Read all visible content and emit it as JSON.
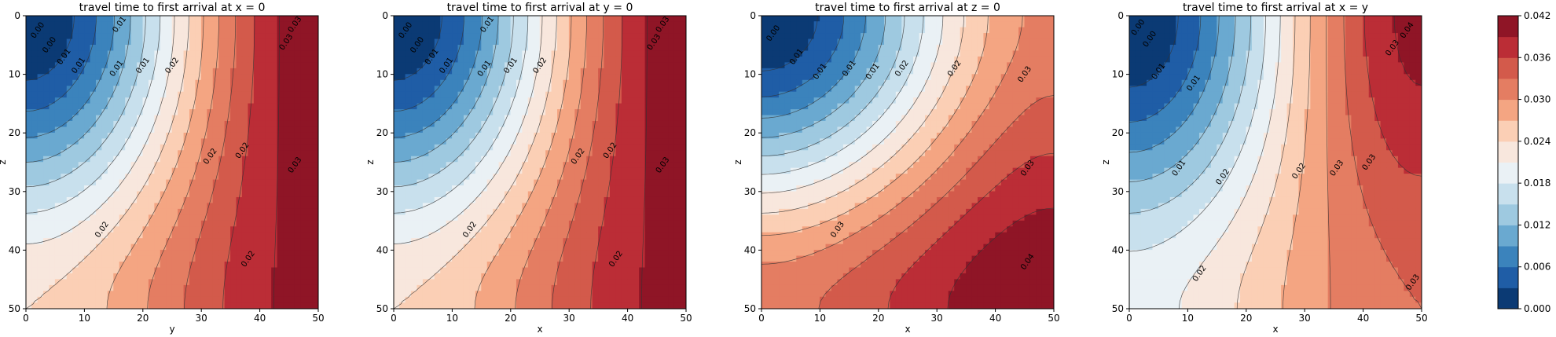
{
  "chart_data": {
    "type": "contour",
    "value_levels": [
      0.0,
      0.003,
      0.006,
      0.009,
      0.012,
      0.015,
      0.018,
      0.021,
      0.024,
      0.027,
      0.03,
      0.033,
      0.036,
      0.039,
      0.042
    ],
    "level_colors": [
      "#0b3a74",
      "#1f5da6",
      "#3b83bc",
      "#6aa9d0",
      "#9ec9e0",
      "#c8e0ed",
      "#eaf1f5",
      "#f8e7dd",
      "#fbcfb5",
      "#f4a582",
      "#e47d62",
      "#d35a4b",
      "#bb2d36",
      "#8f1526"
    ],
    "colorbar": {
      "ticks": [
        0.0,
        0.006,
        0.012,
        0.018,
        0.024,
        0.03,
        0.036,
        0.042
      ],
      "tick_labels": [
        "0.000",
        "0.006",
        "0.012",
        "0.018",
        "0.024",
        "0.030",
        "0.036",
        "0.042"
      ],
      "range": [
        0.0,
        0.042
      ]
    },
    "panels": [
      {
        "title": "travel time to first arrival at x = 0",
        "xlabel": "y",
        "ylabel": "z",
        "xlim": [
          0,
          50
        ],
        "ylim": [
          50,
          0
        ],
        "x_ticks": [
          0,
          10,
          20,
          30,
          40,
          50
        ],
        "y_ticks": [
          0,
          10,
          20,
          30,
          40,
          50
        ],
        "sample_values": {
          "origin": 0.0,
          "top_right": 0.041,
          "bottom_left": 0.024,
          "bottom_right": 0.04
        },
        "contour_labels": [
          {
            "text": "0.00",
            "x": 2.0,
            "y": 2.5
          },
          {
            "text": "0.00",
            "x": 4.0,
            "y": 5.0
          },
          {
            "text": "0.01",
            "x": 6.5,
            "y": 7.0
          },
          {
            "text": "0.01",
            "x": 9.0,
            "y": 8.5
          },
          {
            "text": "0.01",
            "x": 15.5,
            "y": 9.0
          },
          {
            "text": "0.01",
            "x": 20.0,
            "y": 8.5
          },
          {
            "text": "0.02",
            "x": 25.0,
            "y": 8.5
          },
          {
            "text": "0.01",
            "x": 16.0,
            "y": 1.5
          },
          {
            "text": "0.03",
            "x": 44.5,
            "y": 4.5
          },
          {
            "text": "0.03",
            "x": 46.0,
            "y": 1.5
          },
          {
            "text": "0.02",
            "x": 31.5,
            "y": 24.0
          },
          {
            "text": "0.02",
            "x": 37.0,
            "y": 23.0
          },
          {
            "text": "0.03",
            "x": 46.0,
            "y": 25.5
          },
          {
            "text": "0.02",
            "x": 13.0,
            "y": 36.5
          },
          {
            "text": "0.02",
            "x": 38.0,
            "y": 41.5
          }
        ]
      },
      {
        "title": "travel time to first arrival at y = 0",
        "xlabel": "x",
        "ylabel": "z",
        "xlim": [
          0,
          50
        ],
        "ylim": [
          50,
          0
        ],
        "x_ticks": [
          0,
          10,
          20,
          30,
          40,
          50
        ],
        "y_ticks": [
          0,
          10,
          20,
          30,
          40,
          50
        ],
        "sample_values": {
          "origin": 0.0,
          "top_right": 0.041,
          "bottom_left": 0.024,
          "bottom_right": 0.04
        },
        "contour_labels": [
          {
            "text": "0.00",
            "x": 2.0,
            "y": 2.5
          },
          {
            "text": "0.00",
            "x": 4.0,
            "y": 5.0
          },
          {
            "text": "0.01",
            "x": 6.5,
            "y": 7.0
          },
          {
            "text": "0.01",
            "x": 9.0,
            "y": 8.5
          },
          {
            "text": "0.01",
            "x": 15.5,
            "y": 9.0
          },
          {
            "text": "0.01",
            "x": 20.0,
            "y": 8.5
          },
          {
            "text": "0.02",
            "x": 25.0,
            "y": 8.5
          },
          {
            "text": "0.01",
            "x": 16.0,
            "y": 1.5
          },
          {
            "text": "0.03",
            "x": 44.5,
            "y": 4.5
          },
          {
            "text": "0.03",
            "x": 46.0,
            "y": 1.5
          },
          {
            "text": "0.02",
            "x": 31.5,
            "y": 24.0
          },
          {
            "text": "0.02",
            "x": 37.0,
            "y": 23.0
          },
          {
            "text": "0.03",
            "x": 46.0,
            "y": 25.5
          },
          {
            "text": "0.02",
            "x": 13.0,
            "y": 36.5
          },
          {
            "text": "0.02",
            "x": 38.0,
            "y": 41.5
          }
        ]
      },
      {
        "title": "travel time to first arrival at z = 0",
        "xlabel": "x",
        "ylabel": "z",
        "xlim": [
          0,
          50
        ],
        "ylim": [
          50,
          0
        ],
        "x_ticks": [
          0,
          10,
          20,
          30,
          40,
          50
        ],
        "y_ticks": [
          0,
          10,
          20,
          30,
          40,
          50
        ],
        "sample_values": {
          "origin": 0.0,
          "top_right": 0.031,
          "bottom_left": 0.032,
          "bottom_right": 0.042
        },
        "contour_labels": [
          {
            "text": "0.00",
            "x": 2.0,
            "y": 3.0
          },
          {
            "text": "0.01",
            "x": 6.0,
            "y": 7.0
          },
          {
            "text": "0.01",
            "x": 10.0,
            "y": 9.5
          },
          {
            "text": "0.01",
            "x": 15.0,
            "y": 9.0
          },
          {
            "text": "0.01",
            "x": 19.0,
            "y": 9.5
          },
          {
            "text": "0.02",
            "x": 24.0,
            "y": 9.0
          },
          {
            "text": "0.02",
            "x": 33.0,
            "y": 9.0
          },
          {
            "text": "0.03",
            "x": 45.0,
            "y": 10.0
          },
          {
            "text": "0.03",
            "x": 45.5,
            "y": 26.0
          },
          {
            "text": "0.03",
            "x": 13.0,
            "y": 36.5
          },
          {
            "text": "0.04",
            "x": 45.5,
            "y": 42.0
          }
        ]
      },
      {
        "title": "travel time to first arrival at x = y",
        "xlabel": "x",
        "ylabel": "z",
        "xlim": [
          0,
          50
        ],
        "ylim": [
          50,
          0
        ],
        "x_ticks": [
          0,
          10,
          20,
          30,
          40,
          50
        ],
        "y_ticks": [
          0,
          10,
          20,
          30,
          40,
          50
        ],
        "sample_values": {
          "origin": 0.0,
          "top_right": 0.04,
          "bottom_left": 0.02,
          "bottom_right": 0.033
        },
        "contour_labels": [
          {
            "text": "0.00",
            "x": 1.5,
            "y": 2.0
          },
          {
            "text": "0.00",
            "x": 3.5,
            "y": 4.0
          },
          {
            "text": "0.01",
            "x": 5.0,
            "y": 9.5
          },
          {
            "text": "0.01",
            "x": 11.0,
            "y": 11.5
          },
          {
            "text": "0.01",
            "x": 8.5,
            "y": 26.0
          },
          {
            "text": "0.02",
            "x": 16.0,
            "y": 27.5
          },
          {
            "text": "0.02",
            "x": 29.0,
            "y": 26.5
          },
          {
            "text": "0.03",
            "x": 35.5,
            "y": 26.0
          },
          {
            "text": "0.03",
            "x": 41.0,
            "y": 25.0
          },
          {
            "text": "0.02",
            "x": 12.0,
            "y": 44.0
          },
          {
            "text": "0.03",
            "x": 48.5,
            "y": 45.5
          },
          {
            "text": "0.03",
            "x": 45.0,
            "y": 5.5
          },
          {
            "text": "0.04",
            "x": 47.5,
            "y": 2.5
          }
        ]
      }
    ]
  }
}
